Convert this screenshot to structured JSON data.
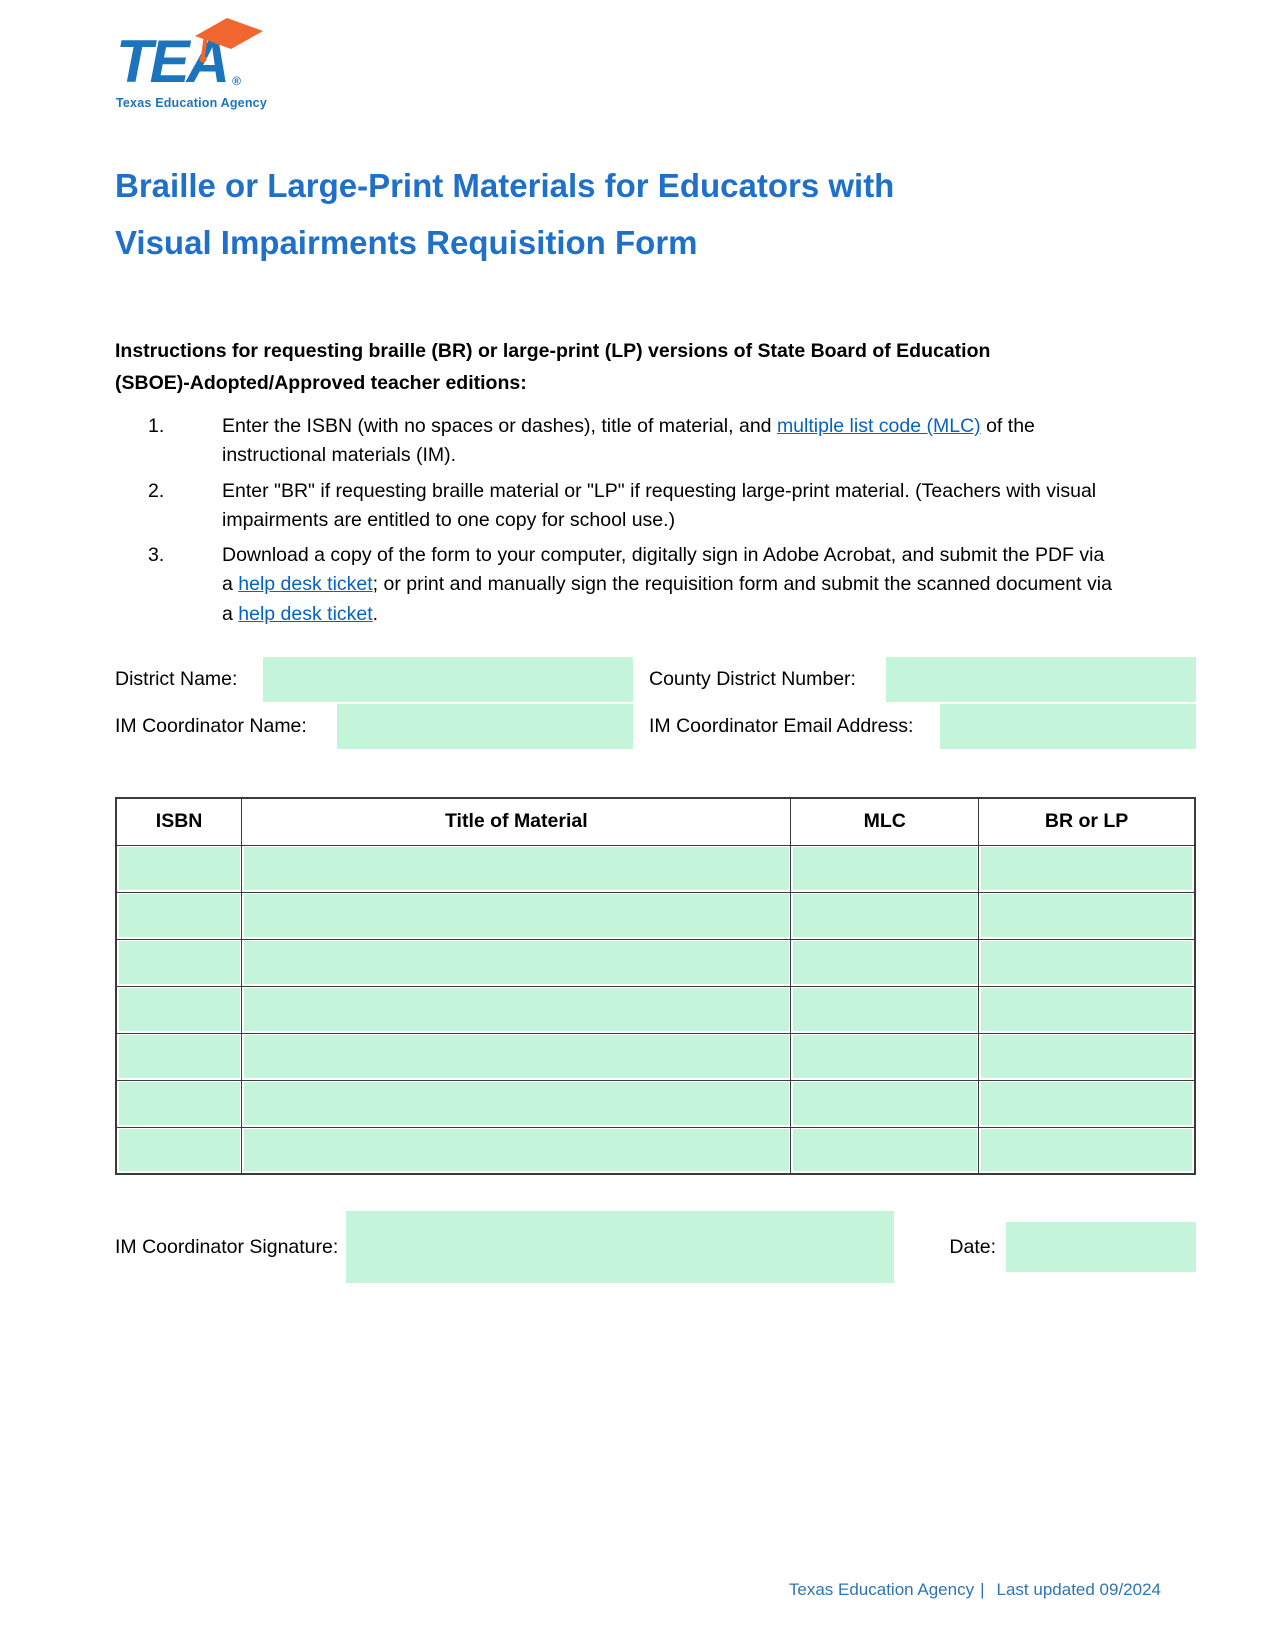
{
  "logo": {
    "tea": "TEA",
    "registered": "®",
    "subtitle": "Texas Education Agency"
  },
  "title": {
    "line1": "Braille or Large-Print Materials for Educators with",
    "line2": "Visual Impairments Requisition Form"
  },
  "instructions": {
    "heading": "Instructions for requesting braille (BR) or large-print (LP) versions of State Board of Education (SBOE)-Adopted/Approved teacher editions:",
    "items": [
      {
        "number": "1.",
        "segments": [
          {
            "text": "Enter the ISBN (with no spaces or dashes), title of material, and "
          },
          {
            "text": "multiple list code (MLC)",
            "link": true
          },
          {
            "text": " of the instructional materials (IM)."
          }
        ]
      },
      {
        "number": "2.",
        "segments": [
          {
            "text": "Enter \"BR\" if requesting braille material or \"LP\" if requesting large-print material. (Teachers with visual impairments are entitled to one copy for school use.)"
          }
        ]
      },
      {
        "number": "3.",
        "segments": [
          {
            "text": "Download a copy of the form to your computer, digitally sign in Adobe Acrobat, and submit the PDF via a "
          },
          {
            "text": "help desk ticket",
            "link": true
          },
          {
            "text": "; or print and manually sign the requisition form and submit the scanned document via a "
          },
          {
            "text": "help desk ticket",
            "link": true
          },
          {
            "text": "."
          }
        ]
      }
    ]
  },
  "fields": {
    "district_name": {
      "label": "District Name:",
      "value": ""
    },
    "county_district_number": {
      "label": "County District Number:",
      "value": ""
    },
    "im_coordinator_name": {
      "label": "IM Coordinator Name:",
      "value": ""
    },
    "im_coordinator_email": {
      "label": "IM Coordinator Email Address:",
      "value": ""
    }
  },
  "table": {
    "headers": [
      "ISBN",
      "Title of Material",
      "MLC",
      "BR or LP"
    ],
    "rows": [
      [
        "",
        "",
        "",
        ""
      ],
      [
        "",
        "",
        "",
        ""
      ],
      [
        "",
        "",
        "",
        ""
      ],
      [
        "",
        "",
        "",
        ""
      ],
      [
        "",
        "",
        "",
        ""
      ],
      [
        "",
        "",
        "",
        ""
      ],
      [
        "",
        "",
        "",
        ""
      ]
    ]
  },
  "signature": {
    "label": "IM Coordinator Signature:",
    "value": "",
    "date_label": "Date:",
    "date_value": ""
  },
  "footer": {
    "agency": "Texas Education Agency",
    "separator": "|",
    "updated": "Last updated 09/2024"
  },
  "colors": {
    "brand_blue": "#1C75BC",
    "brand_orange": "#F1662F",
    "title_blue": "#1E70C8",
    "link_blue": "#0563C1",
    "footer_blue": "#2E74B5",
    "field_green": "#C4F5DA",
    "table_border": "#3B3B3B"
  }
}
